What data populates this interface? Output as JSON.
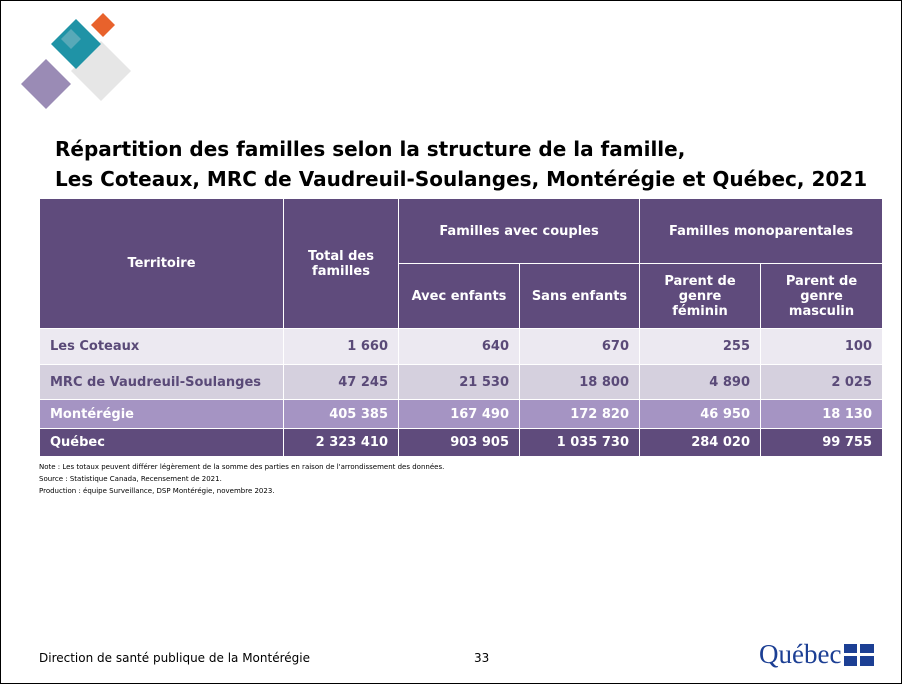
{
  "title": {
    "line1": "Répartition des familles selon la structure de la famille,",
    "line2": "Les Coteaux, MRC de Vaudreuil-Soulanges, Montérégie et Québec, 2021"
  },
  "table": {
    "headers": {
      "territoire": "Territoire",
      "total": "Total des familles",
      "couples": "Familles avec couples",
      "mono": "Familles monoparentales",
      "sub": [
        "Avec enfants",
        "Sans enfants",
        "Parent de genre féminin",
        "Parent de genre masculin"
      ]
    },
    "rows": [
      [
        "Les Coteaux",
        "1 660",
        "640",
        "670",
        "255",
        "100"
      ],
      [
        "MRC de Vaudreuil-Soulanges",
        "47 245",
        "21 530",
        "18 800",
        "4 890",
        "2 025"
      ],
      [
        "Montérégie",
        "405 385",
        "167 490",
        "172 820",
        "46 950",
        "18 130"
      ],
      [
        "Québec",
        "2 323 410",
        "903 905",
        "1 035 730",
        "284 020",
        "99 755"
      ]
    ]
  },
  "notes": [
    "Note : Les totaux peuvent différer légèrement de la somme des parties en raison de l'arrondissement des données.",
    "Source : Statistique Canada, Recensement de 2021.",
    "Production : équipe Surveillance, DSP Montérégie, novembre 2023."
  ],
  "footer": {
    "left": "Direction de santé publique de la Montérégie",
    "page": "33",
    "logo": "Québec"
  }
}
